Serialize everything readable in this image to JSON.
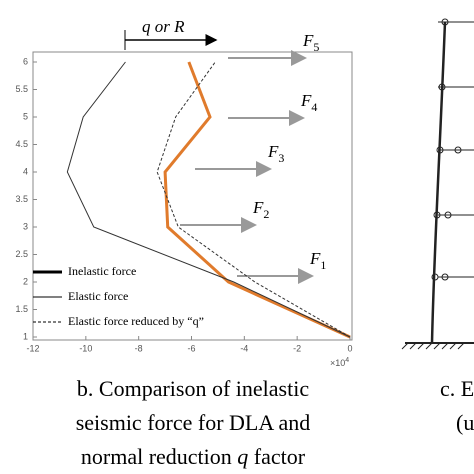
{
  "chart_data": {
    "type": "line",
    "xlim": [
      -12,
      0
    ],
    "ylim": [
      1,
      6
    ],
    "xticks": [
      -12,
      -10,
      -8,
      -6,
      -4,
      -2,
      0
    ],
    "yticks": [
      1,
      1.5,
      2,
      2.5,
      3,
      3.5,
      4,
      4.5,
      5,
      5.5,
      6
    ],
    "x_scale": {
      "base": "×10",
      "exp": "4"
    },
    "series": [
      {
        "name": "Inelastic force",
        "color": "#e07b2c",
        "line_style": "solid",
        "x": [
          0,
          -4.6,
          -6.9,
          -7.0,
          -5.3,
          -6.1
        ],
        "values": [
          1,
          2,
          3,
          4,
          5,
          6
        ]
      },
      {
        "name": "Elastic force",
        "color": "#333333",
        "line_style": "solid",
        "x": [
          0,
          -4.4,
          -9.7,
          -10.7,
          -10.1,
          -8.5
        ],
        "values": [
          1,
          2,
          3,
          4,
          5,
          6
        ]
      },
      {
        "name": "Elastic force reduced by “q”",
        "color": "#333333",
        "line_style": "dashed",
        "x": [
          0,
          -3.6,
          -6.5,
          -7.3,
          -6.6,
          -5.1
        ],
        "values": [
          1,
          2,
          3,
          4,
          5,
          6
        ]
      }
    ],
    "bracket_label": "q or R",
    "forces": [
      {
        "text": "F",
        "sub": "1"
      },
      {
        "text": "F",
        "sub": "2"
      },
      {
        "text": "F",
        "sub": "3"
      },
      {
        "text": "F",
        "sub": "4"
      },
      {
        "text": "F",
        "sub": "5"
      }
    ]
  },
  "caption": {
    "line1": "b. Comparison of inelastic",
    "line2": "seismic force for DLA and",
    "line3_a": "normal reduction ",
    "line3_q": "q",
    "line3_b": " factor"
  },
  "right_caption": {
    "line1": "c. E",
    "line2": "(u"
  }
}
